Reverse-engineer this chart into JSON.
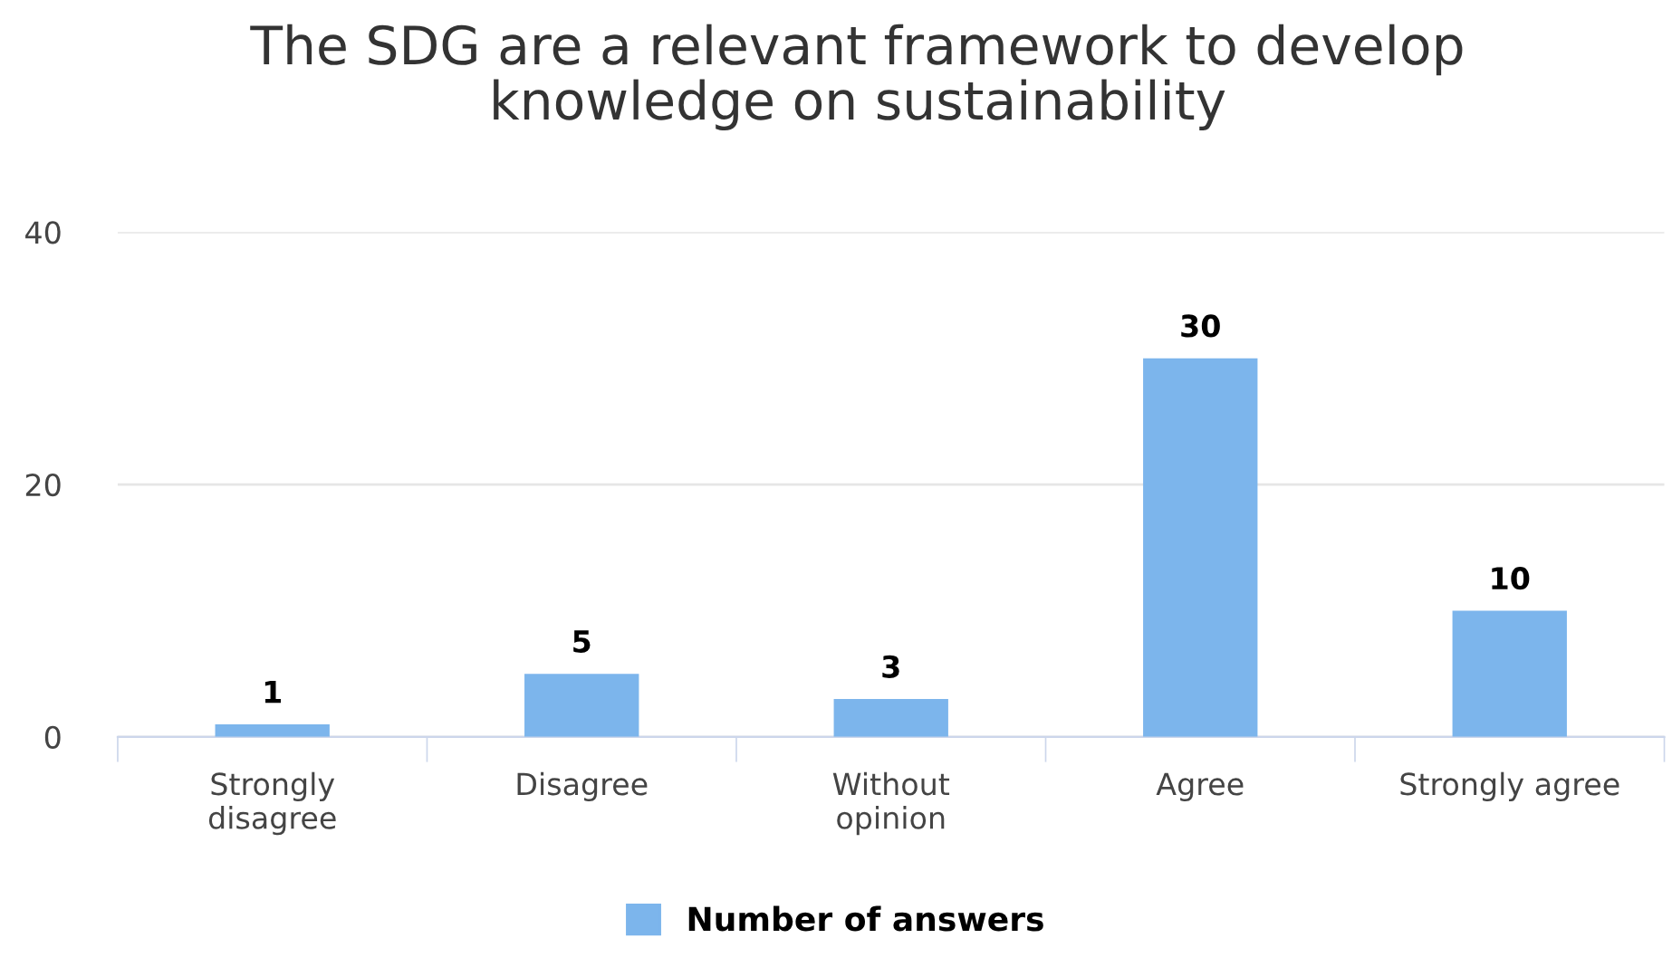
{
  "chart_data": {
    "type": "bar",
    "title": "The SDG are a relevant framework to develop\nknowledge on sustainability",
    "categories": [
      "Strongly\ndisagree",
      "Disagree",
      "Without\nopinion",
      "Agree",
      "Strongly agree"
    ],
    "series": [
      {
        "name": "Number of answers",
        "color": "#7cb5ec",
        "values": [
          1,
          5,
          3,
          30,
          10
        ]
      }
    ],
    "ylim": [
      0,
      40
    ],
    "yticks": [
      0,
      20,
      40
    ],
    "grid": "y",
    "data_labels": true,
    "legend": "bottom"
  }
}
